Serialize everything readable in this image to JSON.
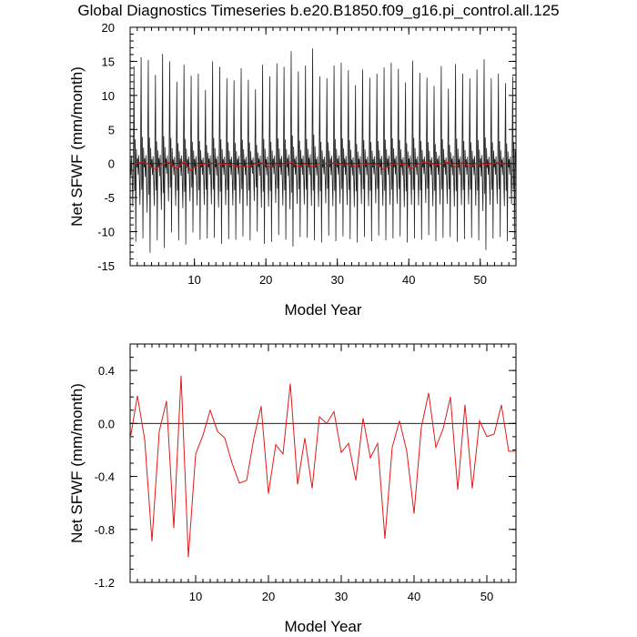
{
  "title": "Global Diagnostics Timeseries b.e20.B1850.f09_g16.pi_control.all.125",
  "chart_data": [
    {
      "type": "line",
      "xlabel": "Model Year",
      "ylabel": "Net SFWF (mm/month)",
      "xlim": [
        1,
        55
      ],
      "ylim": [
        -15,
        20
      ],
      "xticks": [
        "10",
        "20",
        "30",
        "40",
        "50"
      ],
      "yticks": [
        "-15",
        "-10",
        "-5",
        "0",
        "5",
        "10",
        "15",
        "20"
      ],
      "reference_line": 0,
      "series": [
        {
          "color": "#222222",
          "cycle_months": 12,
          "annual_peak": [
            14.3,
            15.6,
            15.2,
            13.0,
            16.1,
            15.0,
            12.0,
            14.5,
            12.9,
            13.2,
            10.8,
            15.0,
            14.2,
            12.5,
            12.2,
            14.0,
            12.3,
            10.9,
            14.5,
            12.8,
            14.7,
            14.2,
            16.5,
            13.5,
            14.4,
            16.9,
            12.8,
            12.5,
            14.4,
            14.8,
            13.7,
            11.5,
            13.8,
            12.6,
            13.2,
            14.1,
            14.8,
            13.9,
            11.9,
            15.1,
            13.3,
            12.6,
            11.4,
            14.3,
            11.0,
            14.6,
            13.2,
            12.5,
            13.8,
            15.3,
            12.5,
            13.2,
            11.8,
            12.8
          ],
          "annual_trough": [
            -11.5,
            -11.0,
            -13.1,
            -11.3,
            -12.4,
            -10.1,
            -11.3,
            -11.9,
            -10.1,
            -11.2,
            -11.0,
            -10.9,
            -11.8,
            -11.1,
            -11.2,
            -10.7,
            -11.3,
            -10.0,
            -11.8,
            -11.5,
            -10.5,
            -11.2,
            -12.2,
            -10.8,
            -10.9,
            -11.3,
            -11.6,
            -10.6,
            -11.4,
            -10.7,
            -11.1,
            -11.6,
            -10.8,
            -11.4,
            -10.6,
            -11.3,
            -11.0,
            -10.7,
            -11.6,
            -11.0,
            -11.2,
            -10.5,
            -11.4,
            -10.9,
            -10.8,
            -11.5,
            -11.1,
            -10.9,
            -11.3,
            -12.7,
            -11.0,
            -10.8,
            -11.4,
            -10.9
          ]
        },
        {
          "color": "#e11919",
          "x": [
            1.5,
            2.5,
            3.5,
            4.5,
            5.5,
            6.5,
            7.5,
            8.5,
            9.5,
            10.5,
            11.5,
            12.5,
            13.5,
            14.5,
            15.5,
            16.5,
            17.5,
            18.5,
            19.5,
            20.5,
            21.5,
            22.5,
            23.5,
            24.5,
            25.5,
            26.5,
            27.5,
            28.5,
            29.5,
            30.5,
            31.5,
            32.5,
            33.5,
            34.5,
            35.5,
            36.5,
            37.5,
            38.5,
            39.5,
            40.5,
            41.5,
            42.5,
            43.5,
            44.5,
            45.5,
            46.5,
            47.5,
            48.5,
            49.5,
            50.5,
            51.5,
            52.5,
            53.5
          ],
          "y": [
            -0.1,
            0.2,
            -0.1,
            -0.88,
            -0.05,
            0.16,
            -0.78,
            0.36,
            -1.01,
            -0.22,
            -0.08,
            0.1,
            -0.05,
            -0.1,
            -0.3,
            -0.45,
            -0.42,
            -0.1,
            0.13,
            -0.52,
            -0.15,
            -0.23,
            0.3,
            -0.45,
            -0.1,
            -0.48,
            0.05,
            0.0,
            0.1,
            -0.22,
            -0.15,
            -0.43,
            0.04,
            -0.25,
            -0.15,
            -0.87,
            -0.18,
            0.02,
            -0.2,
            -0.67,
            -0.02,
            0.23,
            -0.18,
            -0.03,
            0.2,
            -0.5,
            0.14,
            -0.48,
            0.02,
            -0.1,
            -0.08,
            0.14,
            -0.2
          ]
        }
      ]
    },
    {
      "type": "line",
      "xlabel": "Model Year",
      "ylabel": "Net SFWF (mm/month)",
      "xlim": [
        1,
        54
      ],
      "ylim": [
        -1.2,
        0.6
      ],
      "xticks": [
        "10",
        "20",
        "30",
        "40",
        "50"
      ],
      "yticks": [
        "-1.2",
        "-0.8",
        "-0.4",
        "0.0",
        "0.4"
      ],
      "reference_line": 0,
      "series": [
        {
          "color": "#e11919",
          "x": [
            1,
            2,
            3,
            4,
            5,
            6,
            7,
            8,
            9,
            10,
            11,
            12,
            13,
            14,
            15,
            16,
            17,
            18,
            19,
            20,
            21,
            22,
            23,
            24,
            25,
            26,
            27,
            28,
            29,
            30,
            31,
            32,
            33,
            34,
            35,
            36,
            37,
            38,
            39,
            40,
            41,
            42,
            43,
            44,
            45,
            46,
            47,
            48,
            49,
            50,
            51,
            52,
            53,
            54
          ],
          "y": [
            -0.12,
            0.21,
            -0.12,
            -0.89,
            -0.06,
            0.17,
            -0.79,
            0.36,
            -1.01,
            -0.23,
            -0.09,
            0.1,
            -0.06,
            -0.11,
            -0.3,
            -0.45,
            -0.43,
            -0.11,
            0.13,
            -0.53,
            -0.16,
            -0.23,
            0.3,
            -0.46,
            -0.11,
            -0.49,
            0.05,
            0.0,
            0.09,
            -0.22,
            -0.15,
            -0.43,
            0.04,
            -0.26,
            -0.15,
            -0.87,
            -0.18,
            0.02,
            -0.21,
            -0.68,
            -0.03,
            0.23,
            -0.18,
            -0.04,
            0.2,
            -0.5,
            0.14,
            -0.49,
            0.02,
            -0.1,
            -0.08,
            0.14,
            -0.21,
            -0.21
          ]
        }
      ]
    }
  ]
}
